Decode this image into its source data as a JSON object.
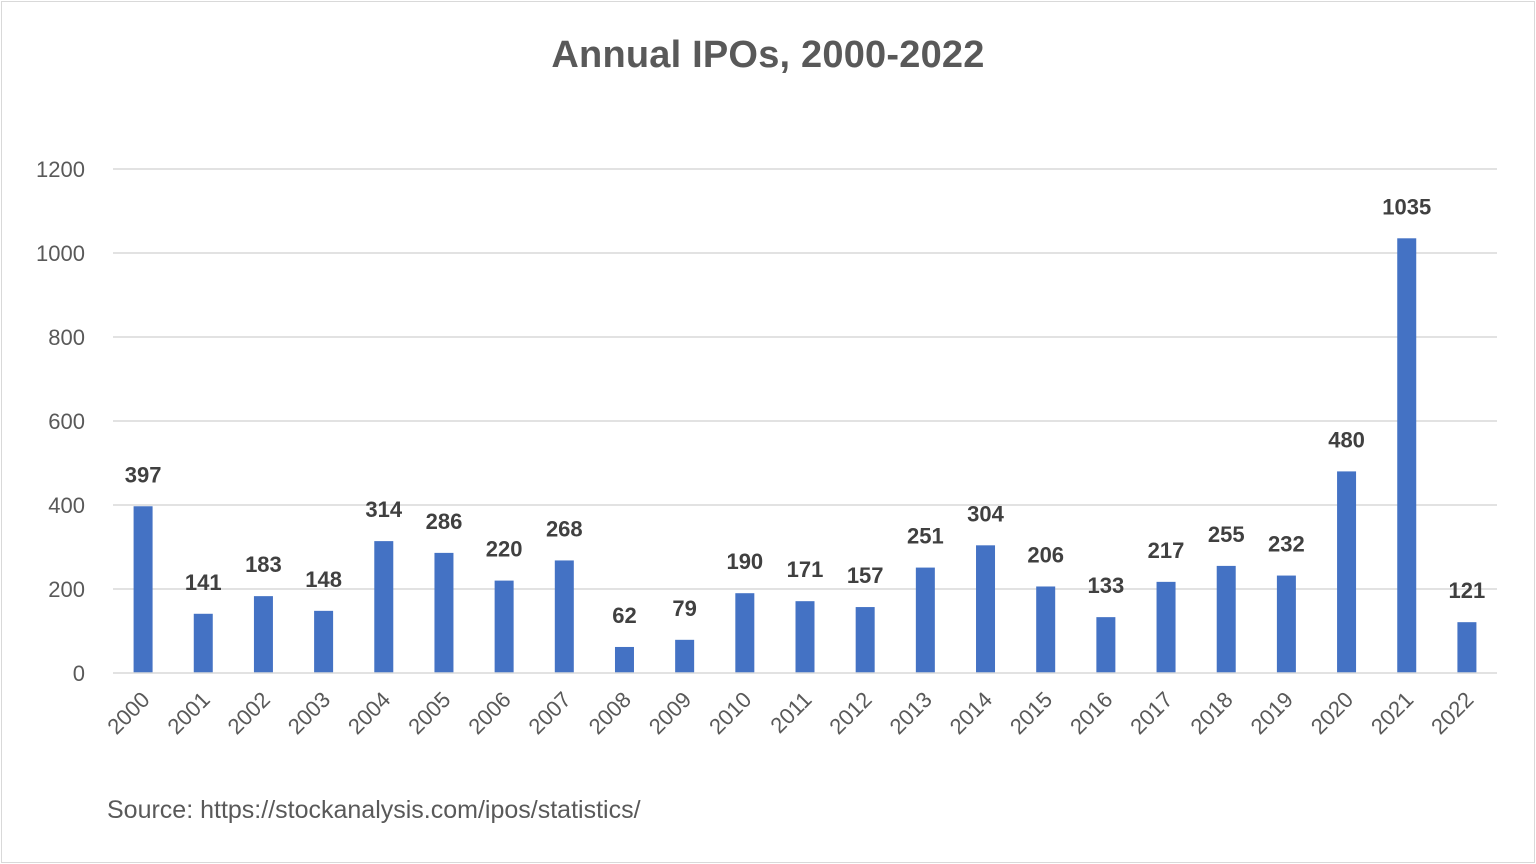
{
  "chart_data": {
    "type": "bar",
    "title": "Annual IPOs, 2000-2022",
    "source": "Source: https://stockanalysis.com/ipos/statistics/",
    "categories": [
      "2000",
      "2001",
      "2002",
      "2003",
      "2004",
      "2005",
      "2006",
      "2007",
      "2008",
      "2009",
      "2010",
      "2011",
      "2012",
      "2013",
      "2014",
      "2015",
      "2016",
      "2017",
      "2018",
      "2019",
      "2020",
      "2021",
      "2022"
    ],
    "values": [
      397,
      141,
      183,
      148,
      314,
      286,
      220,
      268,
      62,
      79,
      190,
      171,
      157,
      251,
      304,
      206,
      133,
      217,
      255,
      232,
      480,
      1035,
      121
    ],
    "ylim": [
      0,
      1200
    ],
    "yticks": [
      0,
      200,
      400,
      600,
      800,
      1000,
      1200
    ],
    "grid": true,
    "data_labels": true,
    "colors": {
      "bar": "#4472c4",
      "grid": "#d9d9d9",
      "text": "#595959",
      "label": "#404040"
    }
  }
}
